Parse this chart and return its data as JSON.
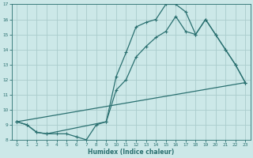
{
  "xlabel": "Humidex (Indice chaleur)",
  "bg_color": "#cce8e8",
  "grid_color": "#aacccc",
  "line_color": "#2a7070",
  "xlim": [
    -0.5,
    23.5
  ],
  "ylim": [
    8,
    17
  ],
  "xticks": [
    0,
    1,
    2,
    3,
    4,
    5,
    6,
    7,
    8,
    9,
    10,
    11,
    12,
    13,
    14,
    15,
    16,
    17,
    18,
    19,
    20,
    21,
    22,
    23
  ],
  "yticks": [
    8,
    9,
    10,
    11,
    12,
    13,
    14,
    15,
    16,
    17
  ],
  "line1_x": [
    0,
    1,
    2,
    3,
    4,
    5,
    6,
    7,
    8,
    9,
    10,
    11,
    12,
    13,
    14,
    15,
    16,
    17,
    18,
    19,
    20,
    21,
    22,
    23
  ],
  "line1_y": [
    9.2,
    9.0,
    8.5,
    8.4,
    8.4,
    8.4,
    8.2,
    8.0,
    9.0,
    9.2,
    12.2,
    13.8,
    15.5,
    15.8,
    16.0,
    17.0,
    17.0,
    16.5,
    15.0,
    16.0,
    15.0,
    14.0,
    13.0,
    11.8
  ],
  "line2_x": [
    0,
    1,
    2,
    3,
    9,
    10,
    11,
    12,
    13,
    14,
    15,
    16,
    17,
    18,
    19,
    20,
    21,
    22,
    23
  ],
  "line2_y": [
    9.2,
    9.0,
    8.5,
    8.4,
    9.2,
    11.3,
    12.0,
    13.5,
    14.2,
    14.8,
    15.2,
    16.2,
    15.2,
    15.0,
    16.0,
    15.0,
    14.0,
    13.0,
    11.8
  ],
  "line3_x": [
    0,
    23
  ],
  "line3_y": [
    9.2,
    11.8
  ]
}
